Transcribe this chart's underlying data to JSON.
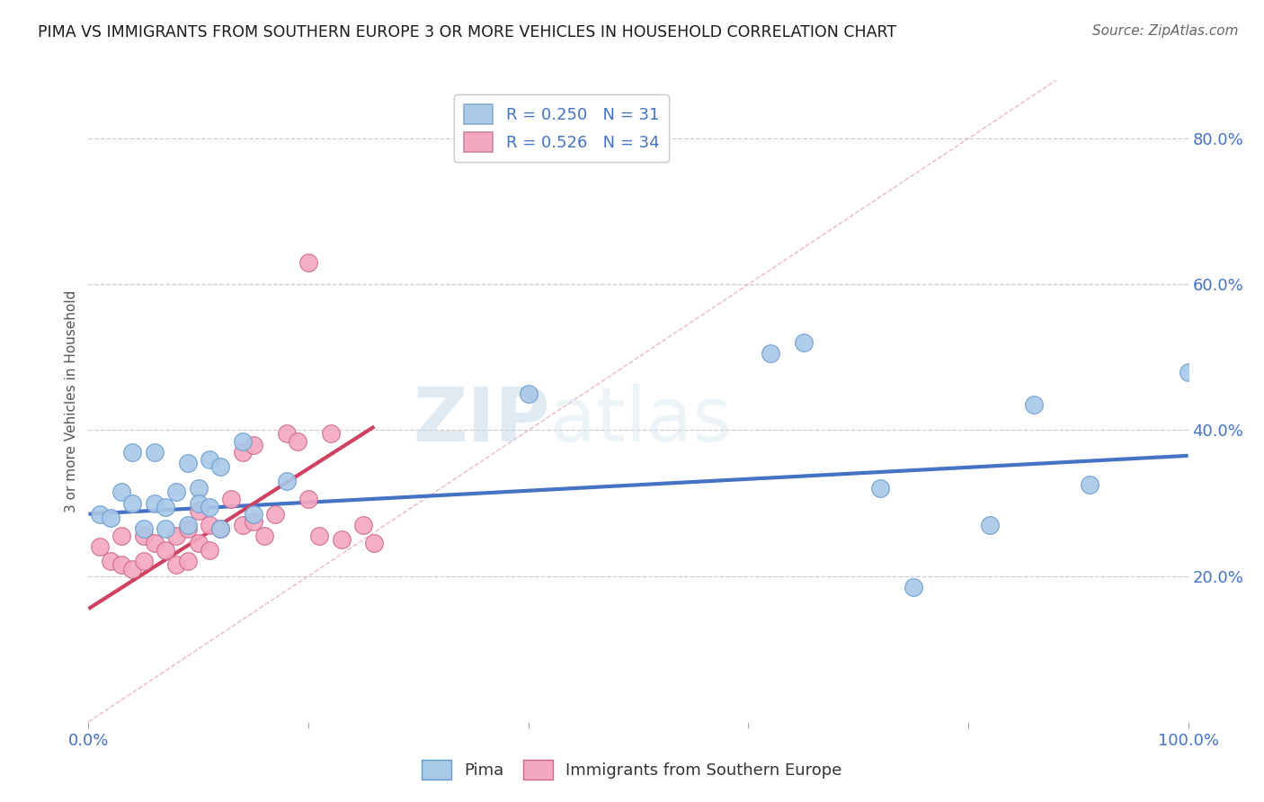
{
  "title": "PIMA VS IMMIGRANTS FROM SOUTHERN EUROPE 3 OR MORE VEHICLES IN HOUSEHOLD CORRELATION CHART",
  "source": "Source: ZipAtlas.com",
  "ylabel": "3 or more Vehicles in Household",
  "xlim": [
    0.0,
    1.0
  ],
  "ylim": [
    0.0,
    0.88
  ],
  "x_ticks": [
    0.0,
    0.2,
    0.4,
    0.6,
    0.8,
    1.0
  ],
  "x_tick_labels": [
    "0.0%",
    "",
    "",
    "",
    "",
    "100.0%"
  ],
  "y_ticks": [
    0.2,
    0.4,
    0.6,
    0.8
  ],
  "y_tick_labels": [
    "20.0%",
    "40.0%",
    "60.0%",
    "80.0%"
  ],
  "legend_entries": [
    {
      "label": "R = 0.250   N = 31",
      "color": "#aac8e8"
    },
    {
      "label": "R = 0.526   N = 34",
      "color": "#f4a8c0"
    }
  ],
  "pima_color": "#a8c8e8",
  "pima_edge_color": "#6699cc",
  "imm_color": "#f4a8c0",
  "imm_edge_color": "#cc6688",
  "blue_line_color": "#4472c4",
  "pink_line_color": "#d04060",
  "diag_line_color": "#e8b0c0",
  "pima_points_x": [
    0.01,
    0.02,
    0.03,
    0.04,
    0.04,
    0.05,
    0.06,
    0.06,
    0.07,
    0.07,
    0.08,
    0.09,
    0.09,
    0.1,
    0.1,
    0.11,
    0.11,
    0.12,
    0.12,
    0.14,
    0.15,
    0.18,
    0.4,
    0.62,
    0.65,
    0.72,
    0.75,
    0.82,
    0.86,
    0.91,
    1.0
  ],
  "pima_points_y": [
    0.285,
    0.28,
    0.315,
    0.3,
    0.37,
    0.265,
    0.3,
    0.37,
    0.265,
    0.295,
    0.315,
    0.355,
    0.27,
    0.32,
    0.3,
    0.36,
    0.295,
    0.265,
    0.35,
    0.385,
    0.285,
    0.33,
    0.45,
    0.505,
    0.52,
    0.32,
    0.185,
    0.27,
    0.435,
    0.325,
    0.48
  ],
  "imm_points_x": [
    0.01,
    0.02,
    0.03,
    0.03,
    0.04,
    0.05,
    0.05,
    0.06,
    0.07,
    0.08,
    0.08,
    0.09,
    0.09,
    0.1,
    0.1,
    0.11,
    0.11,
    0.12,
    0.13,
    0.14,
    0.14,
    0.15,
    0.15,
    0.16,
    0.17,
    0.18,
    0.19,
    0.2,
    0.21,
    0.22,
    0.23,
    0.25,
    0.26,
    0.2
  ],
  "imm_points_y": [
    0.24,
    0.22,
    0.215,
    0.255,
    0.21,
    0.22,
    0.255,
    0.245,
    0.235,
    0.215,
    0.255,
    0.22,
    0.265,
    0.245,
    0.29,
    0.235,
    0.27,
    0.265,
    0.305,
    0.27,
    0.37,
    0.275,
    0.38,
    0.255,
    0.285,
    0.395,
    0.385,
    0.305,
    0.255,
    0.395,
    0.25,
    0.27,
    0.245,
    0.63
  ],
  "imm_outlier_x": [
    0.2
  ],
  "imm_outlier_y": [
    0.63
  ],
  "blue_line": {
    "x0": 0.0,
    "y0": 0.285,
    "x1": 1.0,
    "y1": 0.365
  },
  "pink_line": {
    "x0": 0.0,
    "y0": 0.155,
    "x1": 0.26,
    "y1": 0.405
  },
  "diag_line": {
    "x0": 0.0,
    "y0": 0.0,
    "x1": 0.88,
    "y1": 0.88
  },
  "watermark_zip": "ZIP",
  "watermark_atlas": "atlas",
  "background_color": "#ffffff"
}
